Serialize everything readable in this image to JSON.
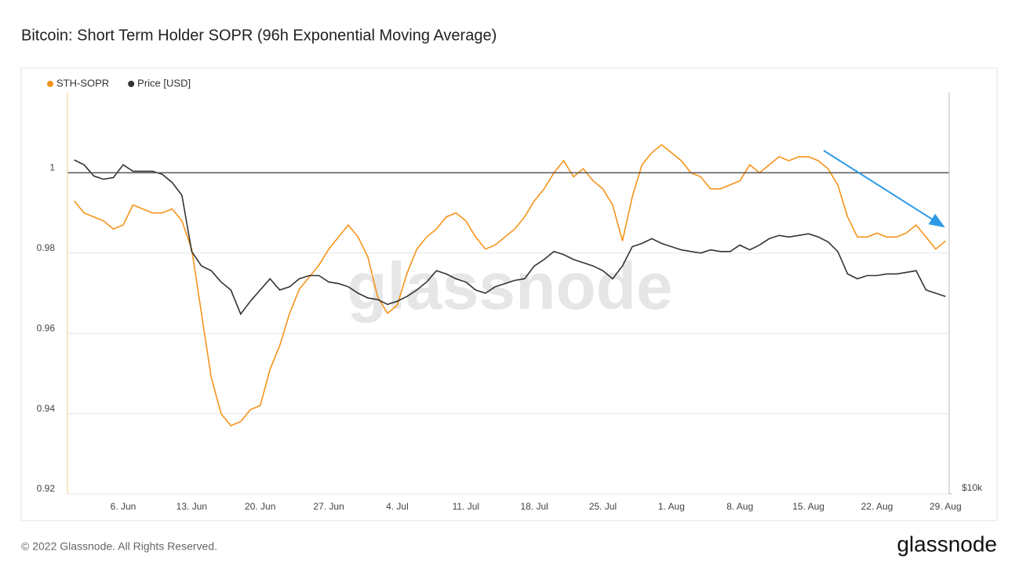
{
  "chart_data": {
    "type": "line",
    "title": "Bitcoin: Short Term Holder SOPR (96h Exponential Moving Average)",
    "watermark": "glassnode",
    "footer": "© 2022 Glassnode. All Rights Reserved.",
    "logo": "glassnode",
    "categories": [
      "1. Jun",
      "2. Jun",
      "3. Jun",
      "4. Jun",
      "5. Jun",
      "6. Jun",
      "7. Jun",
      "8. Jun",
      "9. Jun",
      "10. Jun",
      "11. Jun",
      "12. Jun",
      "13. Jun",
      "14. Jun",
      "15. Jun",
      "16. Jun",
      "17. Jun",
      "18. Jun",
      "19. Jun",
      "20. Jun",
      "21. Jun",
      "22. Jun",
      "23. Jun",
      "24. Jun",
      "25. Jun",
      "26. Jun",
      "27. Jun",
      "28. Jun",
      "29. Jun",
      "30. Jun",
      "1. Jul",
      "2. Jul",
      "3. Jul",
      "4. Jul",
      "5. Jul",
      "6. Jul",
      "7. Jul",
      "8. Jul",
      "9. Jul",
      "10. Jul",
      "11. Jul",
      "12. Jul",
      "13. Jul",
      "14. Jul",
      "15. Jul",
      "16. Jul",
      "17. Jul",
      "18. Jul",
      "19. Jul",
      "20. Jul",
      "21. Jul",
      "22. Jul",
      "23. Jul",
      "24. Jul",
      "25. Jul",
      "26. Jul",
      "27. Jul",
      "28. Jul",
      "29. Jul",
      "30. Jul",
      "31. Jul",
      "1. Aug",
      "2. Aug",
      "3. Aug",
      "4. Aug",
      "5. Aug",
      "6. Aug",
      "7. Aug",
      "8. Aug",
      "9. Aug",
      "10. Aug",
      "11. Aug",
      "12. Aug",
      "13. Aug",
      "14. Aug",
      "15. Aug",
      "16. Aug",
      "17. Aug",
      "18. Aug",
      "19. Aug",
      "20. Aug",
      "21. Aug",
      "22. Aug",
      "23. Aug",
      "24. Aug",
      "25. Aug",
      "26. Aug",
      "27. Aug",
      "28. Aug",
      "29. Aug"
    ],
    "xticks": [
      "6. Jun",
      "13. Jun",
      "20. Jun",
      "27. Jun",
      "4. Jul",
      "11. Jul",
      "18. Jul",
      "25. Jul",
      "1. Aug",
      "8. Aug",
      "15. Aug",
      "22. Aug",
      "29. Aug"
    ],
    "series": [
      {
        "name": "STH-SOPR",
        "color": "#f7931a",
        "values": [
          0.993,
          0.99,
          0.989,
          0.988,
          0.986,
          0.987,
          0.992,
          0.991,
          0.99,
          0.99,
          0.991,
          0.988,
          0.981,
          0.965,
          0.949,
          0.94,
          0.937,
          0.938,
          0.941,
          0.942,
          0.951,
          0.957,
          0.965,
          0.971,
          0.974,
          0.977,
          0.981,
          0.984,
          0.987,
          0.984,
          0.979,
          0.969,
          0.965,
          0.967,
          0.975,
          0.981,
          0.984,
          0.986,
          0.989,
          0.99,
          0.988,
          0.984,
          0.981,
          0.982,
          0.984,
          0.986,
          0.989,
          0.993,
          0.996,
          1.0,
          1.003,
          0.999,
          1.001,
          0.998,
          0.996,
          0.992,
          0.983,
          0.994,
          1.002,
          1.005,
          1.007,
          1.005,
          1.003,
          1.0,
          0.999,
          0.996,
          0.996,
          0.997,
          0.998,
          1.002,
          1.0,
          1.002,
          1.004,
          1.003,
          1.004,
          1.004,
          1.003,
          1.001,
          0.997,
          0.989,
          0.984,
          0.984,
          0.985,
          0.984,
          0.984,
          0.985,
          0.987,
          0.984,
          0.981,
          0.983
        ]
      },
      {
        "name": "Price [USD]",
        "color": "#333333",
        "axis": "y2",
        "values": [
          30800,
          30500,
          29800,
          29600,
          29700,
          30500,
          30100,
          30100,
          30100,
          29900,
          29400,
          28600,
          25100,
          24200,
          23900,
          23200,
          22700,
          21200,
          22000,
          22700,
          23400,
          22700,
          22900,
          23400,
          23600,
          23600,
          23200,
          23100,
          22900,
          22500,
          22200,
          22100,
          21800,
          22000,
          22300,
          22700,
          23200,
          23900,
          23700,
          23400,
          23200,
          22700,
          22500,
          22900,
          23100,
          23300,
          23400,
          24200,
          24600,
          25100,
          24900,
          24600,
          24400,
          24200,
          23900,
          23400,
          24200,
          25400,
          25600,
          25900,
          25600,
          25400,
          25200,
          25100,
          25000,
          25200,
          25100,
          25100,
          25500,
          25200,
          25500,
          25900,
          26100,
          26000,
          26100,
          26200,
          26000,
          25700,
          25100,
          23700,
          23400,
          23600,
          23600,
          23700,
          23700,
          23800,
          23900,
          22700,
          22500,
          22300
        ]
      }
    ],
    "ylim": [
      0.92,
      1.02
    ],
    "yticks": [
      0.92,
      0.94,
      0.96,
      0.98,
      1
    ],
    "reference_line": 1,
    "y2lim": [
      10000,
      35000
    ],
    "y2ticks": [
      {
        "value": 10000,
        "label": "$10k"
      }
    ],
    "grid": true,
    "legend": "top-left"
  }
}
